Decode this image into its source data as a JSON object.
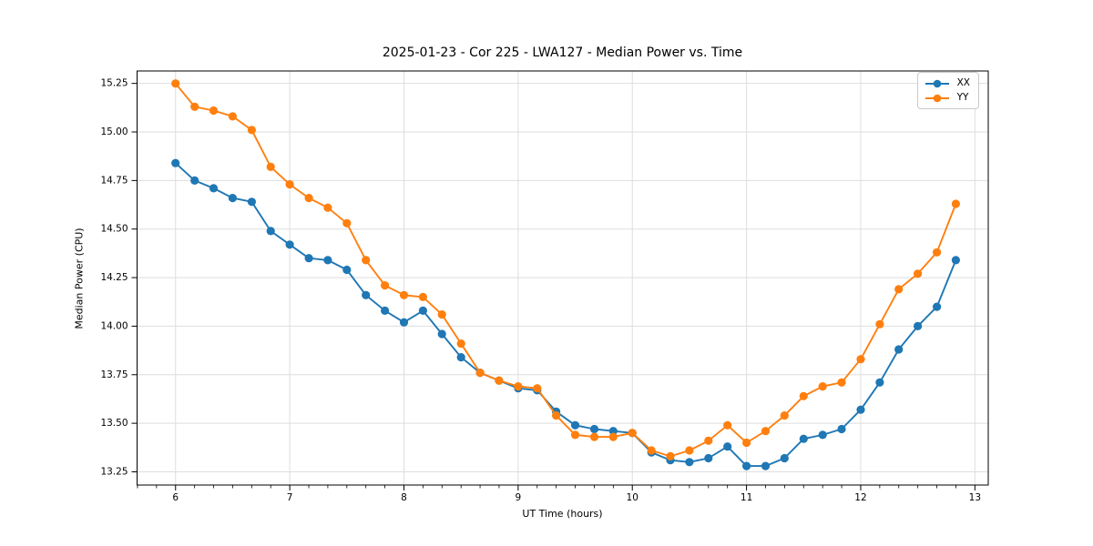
{
  "chart_data": {
    "type": "line",
    "title": "2025-01-23 - Cor 225 - LWA127 - Median Power vs. Time",
    "xlabel": "UT Time (hours)",
    "ylabel": "Median Power (CPU)",
    "xlim": [
      5.663,
      13.117
    ],
    "ylim": [
      13.182,
      15.314
    ],
    "xticks": [
      6,
      7,
      8,
      9,
      10,
      11,
      12,
      13
    ],
    "yticks": [
      13.25,
      13.5,
      13.75,
      14.0,
      14.25,
      14.5,
      14.75,
      15.0,
      15.25
    ],
    "x_minor_step_hours": 0.166667,
    "grid": true,
    "legend_position": "upper right",
    "colors": {
      "grid": "#dedede",
      "spine": "#000000",
      "tick": "#000000"
    },
    "x": [
      6.0,
      6.167,
      6.333,
      6.5,
      6.667,
      6.833,
      7.0,
      7.167,
      7.333,
      7.5,
      7.667,
      7.833,
      8.0,
      8.167,
      8.333,
      8.5,
      8.667,
      8.833,
      9.0,
      9.167,
      9.333,
      9.5,
      9.667,
      9.833,
      10.0,
      10.167,
      10.333,
      10.5,
      10.667,
      10.833,
      11.0,
      11.167,
      11.333,
      11.5,
      11.667,
      11.833,
      12.0,
      12.167,
      12.333,
      12.5,
      12.667,
      12.833
    ],
    "series": [
      {
        "name": "XX",
        "color": "#1f77b4",
        "values": [
          14.84,
          14.75,
          14.71,
          14.66,
          14.64,
          14.49,
          14.42,
          14.35,
          14.34,
          14.29,
          14.16,
          14.08,
          14.02,
          14.08,
          13.96,
          13.84,
          13.76,
          13.72,
          13.68,
          13.67,
          13.56,
          13.49,
          13.47,
          13.46,
          13.45,
          13.35,
          13.31,
          13.3,
          13.32,
          13.38,
          13.28,
          13.28,
          13.32,
          13.42,
          13.44,
          13.47,
          13.57,
          13.71,
          13.88,
          14.0,
          14.1,
          14.34
        ]
      },
      {
        "name": "YY",
        "color": "#ff7f0e",
        "values": [
          15.25,
          15.13,
          15.11,
          15.08,
          15.01,
          14.82,
          14.73,
          14.66,
          14.61,
          14.53,
          14.34,
          14.21,
          14.16,
          14.15,
          14.06,
          13.91,
          13.76,
          13.72,
          13.69,
          13.68,
          13.54,
          13.44,
          13.43,
          13.43,
          13.45,
          13.36,
          13.33,
          13.36,
          13.41,
          13.49,
          13.4,
          13.46,
          13.54,
          13.64,
          13.69,
          13.71,
          13.83,
          14.01,
          14.19,
          14.27,
          14.38,
          14.63
        ]
      }
    ]
  }
}
